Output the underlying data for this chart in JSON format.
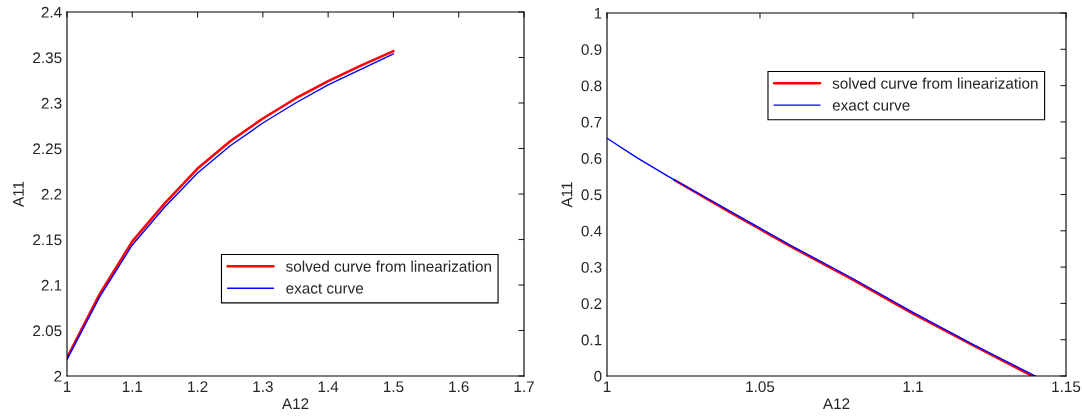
{
  "chart_data": [
    {
      "type": "line",
      "xlabel": "A12",
      "ylabel": "A11",
      "xlim": [
        1,
        1.7
      ],
      "xticks": [
        1,
        1.1,
        1.2,
        1.3,
        1.4,
        1.5,
        1.6,
        1.7
      ],
      "ylim": [
        2,
        2.4
      ],
      "yticks": [
        2,
        2.05,
        2.1,
        2.15,
        2.2,
        2.25,
        2.3,
        2.35,
        2.4
      ],
      "grid": false,
      "legend": "lower right",
      "line_style": "solid",
      "marker": "none",
      "series": [
        {
          "name": "solved curve from linearization",
          "color": "#ff0000",
          "x": [
            1,
            1.05,
            1.1,
            1.15,
            1.2,
            1.25,
            1.3,
            1.35,
            1.4,
            1.45,
            1.5
          ],
          "values": [
            2.02,
            2.09,
            2.148,
            2.19,
            2.228,
            2.258,
            2.283,
            2.305,
            2.324,
            2.341,
            2.357
          ]
        },
        {
          "name": "exact curve",
          "color": "#0000ff",
          "x": [
            1,
            1.05,
            1.1,
            1.15,
            1.2,
            1.25,
            1.3,
            1.35,
            1.4,
            1.45,
            1.5
          ],
          "values": [
            2.018,
            2.087,
            2.144,
            2.186,
            2.223,
            2.253,
            2.278,
            2.3,
            2.32,
            2.337,
            2.354
          ]
        }
      ]
    },
    {
      "type": "line",
      "xlabel": "A12",
      "ylabel": "A11",
      "xlim": [
        1,
        1.15
      ],
      "xticks": [
        1,
        1.05,
        1.1,
        1.15
      ],
      "ylim": [
        0,
        1
      ],
      "yticks": [
        0,
        0.1,
        0.2,
        0.3,
        0.4,
        0.5,
        0.6,
        0.7,
        0.8,
        0.9,
        1
      ],
      "grid": false,
      "legend": "upper right",
      "line_style": "solid",
      "marker": "none",
      "series": [
        {
          "name": "solved curve from linearization",
          "color": "#ff0000",
          "x": [
            1.022,
            1.04,
            1.06,
            1.08,
            1.1,
            1.12,
            1.139
          ],
          "values": [
            0.54,
            0.452,
            0.357,
            0.267,
            0.172,
            0.083,
            0.0
          ]
        },
        {
          "name": "exact curve",
          "color": "#0000ff",
          "x": [
            1,
            1.01,
            1.02,
            1.04,
            1.06,
            1.08,
            1.1,
            1.12,
            1.14
          ],
          "values": [
            0.655,
            0.6,
            0.55,
            0.455,
            0.36,
            0.27,
            0.175,
            0.085,
            0.0
          ]
        }
      ]
    }
  ]
}
